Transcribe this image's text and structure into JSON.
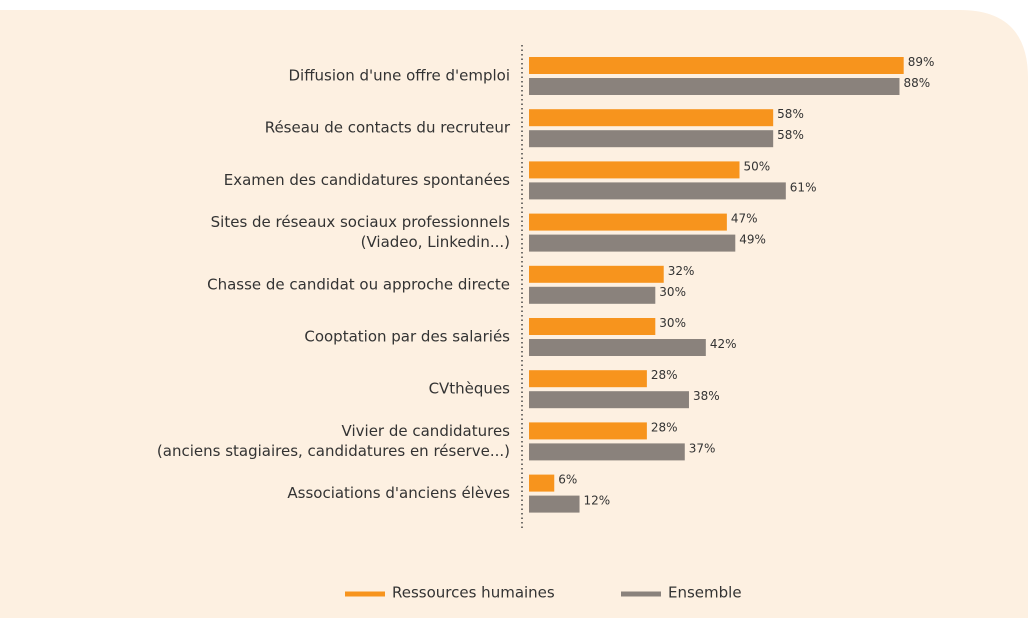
{
  "chart_data": {
    "type": "hbar",
    "categories": [
      [
        "Diffusion d'une offre d'emploi"
      ],
      [
        "Réseau de contacts du recruteur"
      ],
      [
        "Examen des candidatures spontanées"
      ],
      [
        "Sites de réseaux sociaux professionnels",
        "(Viadeo, Linkedin...)"
      ],
      [
        "Chasse de candidat ou approche directe"
      ],
      [
        "Cooptation par des salariés"
      ],
      [
        "CVthèques"
      ],
      [
        "Vivier de candidatures",
        "(anciens stagiaires, candidatures en réserve...)"
      ],
      [
        "Associations d'anciens élèves"
      ]
    ],
    "series": [
      {
        "name": "Ressources humaines",
        "color": "#f7941d",
        "values": [
          89,
          58,
          50,
          47,
          32,
          30,
          28,
          28,
          6
        ],
        "value_labels": [
          "89%",
          "58%",
          "50%",
          "47%",
          "32%",
          "30%",
          "28%",
          "28%",
          "6%"
        ]
      },
      {
        "name": "Ensemble",
        "color": "#8a827c",
        "values": [
          88,
          58,
          61,
          49,
          30,
          42,
          38,
          37,
          12
        ],
        "value_labels": [
          "88%",
          "58%",
          "61%",
          "49%",
          "30%",
          "42%",
          "38%",
          "37%",
          "12%"
        ]
      }
    ],
    "xlim": [
      0,
      100
    ],
    "legend": "bottom"
  }
}
